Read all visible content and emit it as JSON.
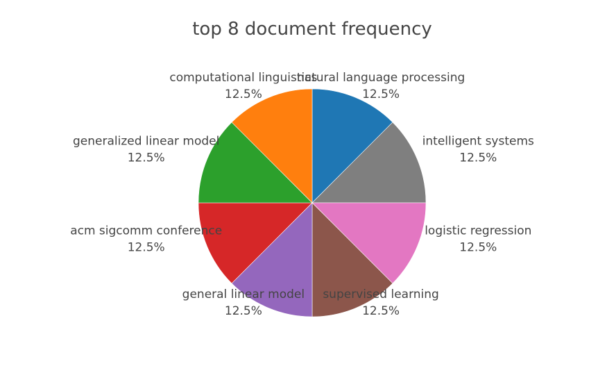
{
  "chart_data": {
    "type": "pie",
    "title": "top 8 document frequency",
    "slices": [
      {
        "label": "natural language processing",
        "value": 12.5,
        "percent_label": "12.5%",
        "color": "#1f77b4"
      },
      {
        "label": "intelligent systems",
        "value": 12.5,
        "percent_label": "12.5%",
        "color": "#7f7f7f"
      },
      {
        "label": "logistic regression",
        "value": 12.5,
        "percent_label": "12.5%",
        "color": "#e377c2"
      },
      {
        "label": "supervised learning",
        "value": 12.5,
        "percent_label": "12.5%",
        "color": "#8c564b"
      },
      {
        "label": "general linear model",
        "value": 12.5,
        "percent_label": "12.5%",
        "color": "#9467bd"
      },
      {
        "label": "acm sigcomm conference",
        "value": 12.5,
        "percent_label": "12.5%",
        "color": "#d62728"
      },
      {
        "label": "generalized linear model",
        "value": 12.5,
        "percent_label": "12.5%",
        "color": "#2ca02c"
      },
      {
        "label": "computational linguistics",
        "value": 12.5,
        "percent_label": "12.5%",
        "color": "#ff7f0e"
      }
    ],
    "direction": "clockwise",
    "start_angle": "12 o'clock",
    "legend": "none",
    "text_position": "outside"
  }
}
